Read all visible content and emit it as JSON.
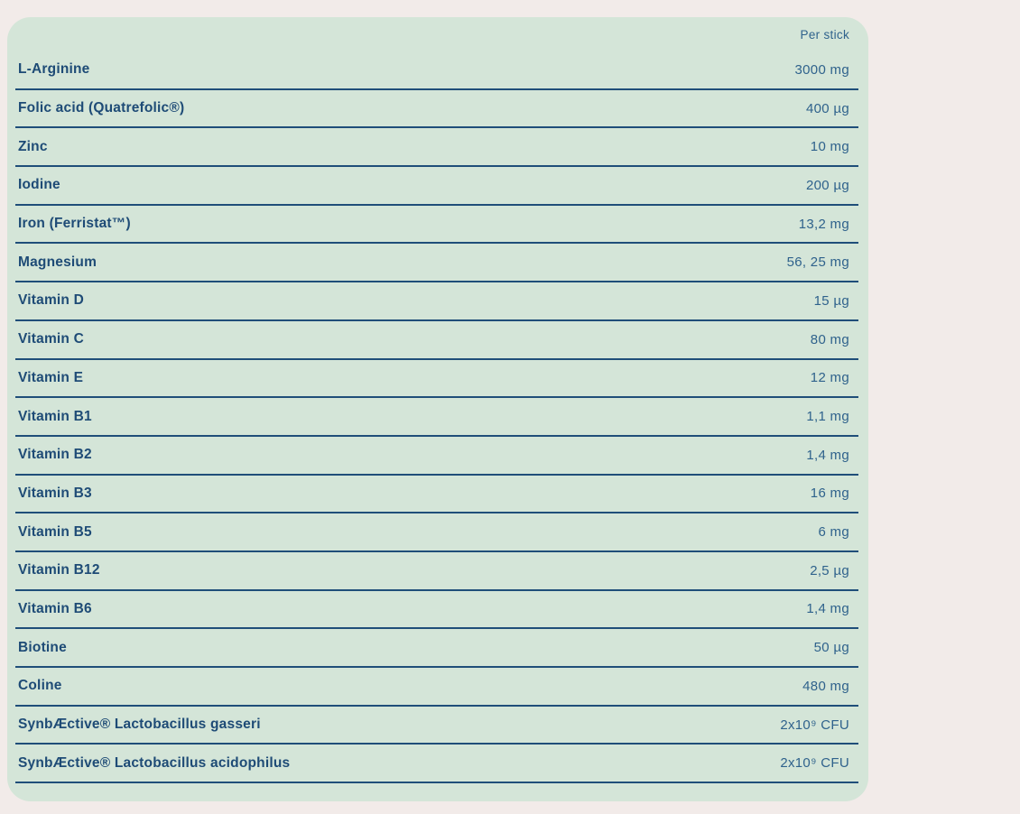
{
  "colors": {
    "page_background": "#f2ebe9",
    "card_background": "#d4e5d8",
    "line_color": "#1f4e79",
    "label_color": "#1e4b76",
    "value_color": "#2f628c"
  },
  "table": {
    "header": "Per stick",
    "rows": [
      {
        "label": "L-Arginine",
        "value": "3000 mg"
      },
      {
        "label": "Folic acid (Quatrefolic®)",
        "value": "400 µg"
      },
      {
        "label": "Zinc",
        "value": "10 mg"
      },
      {
        "label": "Iodine",
        "value": "200 µg"
      },
      {
        "label": "Iron (Ferristat™)",
        "value": "13,2 mg"
      },
      {
        "label": "Magnesium",
        "value": "56, 25 mg"
      },
      {
        "label": "Vitamin D",
        "value": "15 µg"
      },
      {
        "label": "Vitamin C",
        "value": "80 mg"
      },
      {
        "label": "Vitamin E",
        "value": "12 mg"
      },
      {
        "label": "Vitamin B1",
        "value": "1,1 mg"
      },
      {
        "label": "Vitamin B2",
        "value": "1,4 mg"
      },
      {
        "label": "Vitamin B3",
        "value": "16 mg"
      },
      {
        "label": "Vitamin B5",
        "value": "6 mg"
      },
      {
        "label": "Vitamin B12",
        "value": "2,5 µg"
      },
      {
        "label": "Vitamin B6",
        "value": "1,4 mg"
      },
      {
        "label": "Biotine",
        "value": "50 µg"
      },
      {
        "label": "Coline",
        "value": "480 mg"
      },
      {
        "label": "SynbÆctive® Lactobacillus gasseri",
        "value": "2x10⁹ CFU"
      },
      {
        "label": "SynbÆctive® Lactobacillus acidophilus",
        "value": "2x10⁹ CFU"
      }
    ]
  }
}
